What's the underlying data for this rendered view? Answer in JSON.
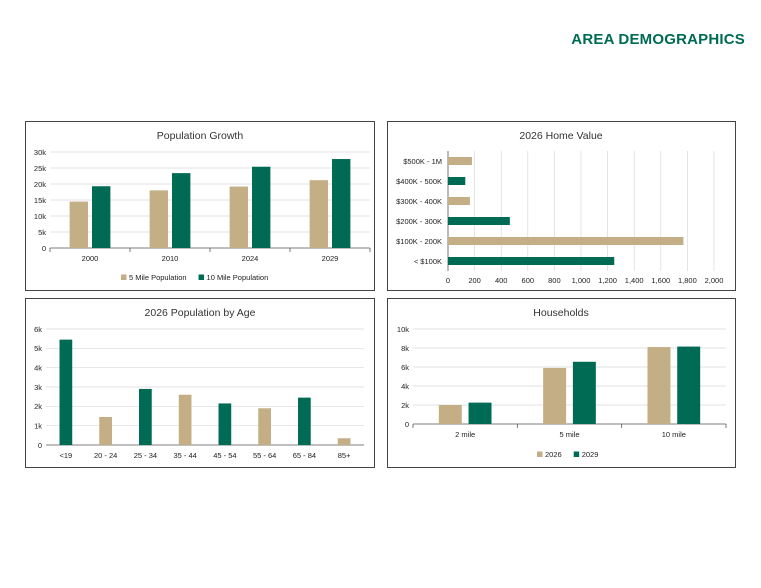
{
  "page": {
    "title": "AREA DEMOGRAPHICS"
  },
  "colors": {
    "tan": "#c4ae86",
    "green": "#006b54",
    "grid": "#d9d9d9",
    "axis": "#555555"
  },
  "chart_data": [
    {
      "id": "population-growth",
      "type": "bar",
      "title": "Population Growth",
      "categories": [
        "2000",
        "2010",
        "2024",
        "2029"
      ],
      "series": [
        {
          "name": "5 Mile Population",
          "color": "#c4ae86",
          "values": [
            14500,
            18000,
            19200,
            21200
          ]
        },
        {
          "name": "10 Mile Population",
          "color": "#006b54",
          "values": [
            19300,
            23400,
            25400,
            27800
          ]
        }
      ],
      "yticks": [
        "0",
        "5k",
        "10k",
        "15k",
        "20k",
        "25k",
        "30k"
      ],
      "ylim": [
        0,
        30000
      ],
      "grid": true,
      "legend": "bottom"
    },
    {
      "id": "home-value",
      "type": "bar",
      "orientation": "horizontal",
      "title": "2026 Home Value",
      "categories": [
        "$500K - 1M",
        "$400K - 500K",
        "$300K - 400K",
        "$200K - 300K",
        "$100K - 200K",
        "< $100K"
      ],
      "values": [
        180,
        130,
        165,
        465,
        1770,
        1250
      ],
      "colors": [
        "#c4ae86",
        "#006b54",
        "#c4ae86",
        "#006b54",
        "#c4ae86",
        "#006b54"
      ],
      "xticks": [
        "0",
        "200",
        "400",
        "600",
        "800",
        "1,000",
        "1,200",
        "1,400",
        "1,600",
        "1,800",
        "2,000"
      ],
      "xlim": [
        0,
        2000
      ],
      "grid": true
    },
    {
      "id": "population-by-age",
      "type": "bar",
      "title": "2026 Population by Age",
      "categories": [
        "<19",
        "20 - 24",
        "25 - 34",
        "35 - 44",
        "45 - 54",
        "55 - 64",
        "65 - 84",
        "85+"
      ],
      "values": [
        5450,
        1450,
        2900,
        2600,
        2150,
        1900,
        2450,
        350
      ],
      "colors": [
        "#006b54",
        "#c4ae86",
        "#006b54",
        "#c4ae86",
        "#006b54",
        "#c4ae86",
        "#006b54",
        "#c4ae86"
      ],
      "yticks": [
        "0",
        "1k",
        "2k",
        "3k",
        "4k",
        "5k",
        "6k"
      ],
      "ylim": [
        0,
        6000
      ],
      "grid": true
    },
    {
      "id": "households",
      "type": "bar",
      "title": "Households",
      "categories": [
        "2 mile",
        "5 mile",
        "10 mile"
      ],
      "series": [
        {
          "name": "2026",
          "color": "#c4ae86",
          "values": [
            2000,
            5900,
            8100
          ]
        },
        {
          "name": "2029",
          "color": "#006b54",
          "values": [
            2250,
            6550,
            8150
          ]
        }
      ],
      "yticks": [
        "0",
        "2k",
        "4k",
        "6k",
        "8k",
        "10k"
      ],
      "ylim": [
        0,
        10000
      ],
      "grid": true,
      "legend": "bottom"
    }
  ]
}
